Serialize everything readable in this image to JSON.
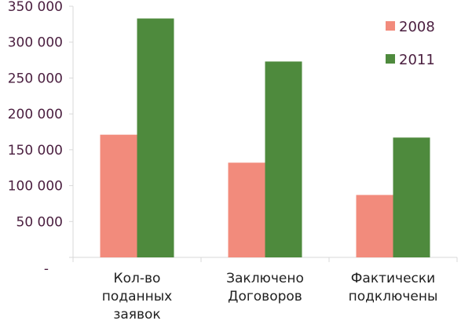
{
  "chart_data": {
    "type": "bar",
    "title": "",
    "xlabel": "",
    "ylabel": "",
    "ylim": [
      0,
      350000
    ],
    "y_ticks": [
      {
        "value": 0,
        "label": "-"
      },
      {
        "value": 50000,
        "label": "50 000"
      },
      {
        "value": 100000,
        "label": "100 000"
      },
      {
        "value": 150000,
        "label": "150 000"
      },
      {
        "value": 200000,
        "label": "200 000"
      },
      {
        "value": 250000,
        "label": "250 000"
      },
      {
        "value": 300000,
        "label": "300 000"
      },
      {
        "value": 350000,
        "label": "350 000"
      }
    ],
    "categories": [
      [
        "Кол-во",
        "поданных",
        "заявок"
      ],
      [
        "Заключено",
        "Договоров"
      ],
      [
        "Фактически",
        "подключены"
      ]
    ],
    "series": [
      {
        "name": "2008",
        "color": "#f28b7c",
        "values": [
          171000,
          132000,
          87000
        ]
      },
      {
        "name": "2011",
        "color": "#4e8a3d",
        "values": [
          333000,
          273000,
          167000
        ]
      }
    ],
    "grid": false,
    "legend_position": "top-right"
  }
}
